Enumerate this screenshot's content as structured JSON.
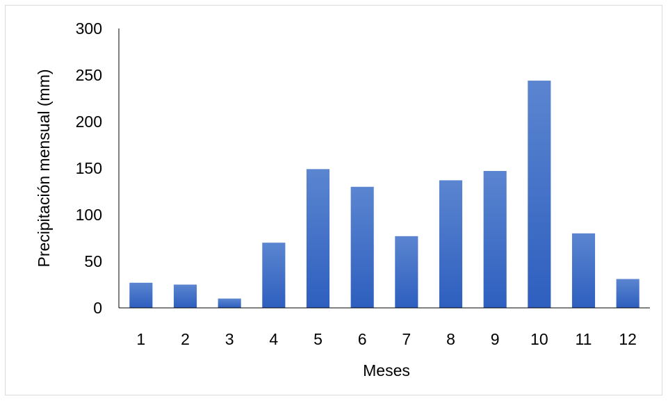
{
  "chart_data": {
    "type": "bar",
    "title": "",
    "xlabel": "Meses",
    "ylabel": "Precipitación mensual (mm)",
    "categories": [
      "1",
      "2",
      "3",
      "4",
      "5",
      "6",
      "7",
      "8",
      "9",
      "10",
      "11",
      "12"
    ],
    "values": [
      27,
      25,
      10,
      70,
      149,
      130,
      77,
      137,
      147,
      244,
      80,
      31
    ],
    "ylim": [
      0,
      300
    ],
    "yticks": [
      "0",
      "50",
      "100",
      "150",
      "200",
      "250",
      "300"
    ],
    "grid": false,
    "legend": "none",
    "bar_color_top": "#5b85d0",
    "bar_color_bottom": "#2e5fbf",
    "axis_color": "#000000"
  }
}
